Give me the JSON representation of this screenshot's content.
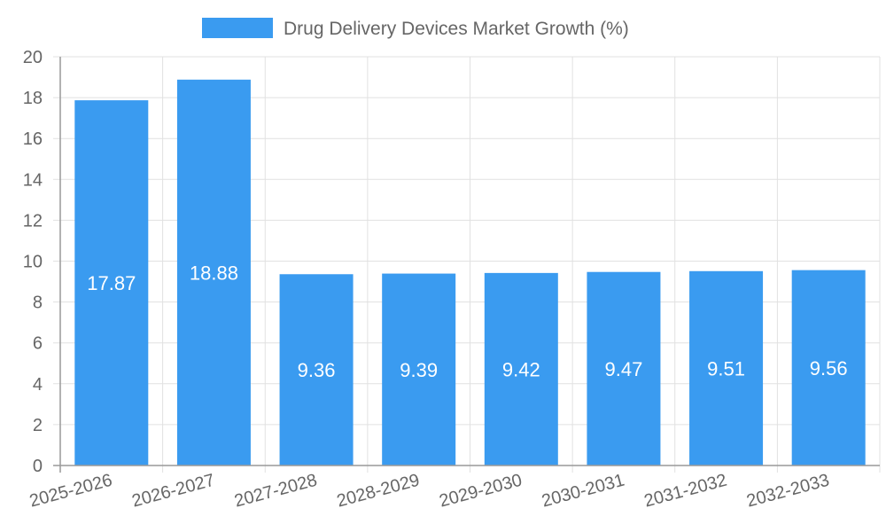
{
  "chart_data": {
    "type": "bar",
    "title": "",
    "xlabel": "",
    "ylabel": "",
    "categories": [
      "2025-2026",
      "2026-2027",
      "2027-2028",
      "2028-2029",
      "2029-2030",
      "2030-2031",
      "2031-2032",
      "2032-2033"
    ],
    "series": [
      {
        "name": "Drug Delivery Devices Market Growth (%)",
        "values": [
          17.87,
          18.88,
          9.36,
          9.39,
          9.42,
          9.47,
          9.51,
          9.56
        ],
        "color": "#3a9bf0"
      }
    ],
    "data_labels": [
      "17.87",
      "18.88",
      "9.36",
      "9.39",
      "9.42",
      "9.47",
      "9.51",
      "9.56"
    ],
    "ylim": [
      0,
      20
    ],
    "y_ticks": [
      "0",
      "2",
      "4",
      "6",
      "8",
      "10",
      "12",
      "14",
      "16",
      "18",
      "20"
    ],
    "grid": true,
    "legend_position": "top"
  }
}
